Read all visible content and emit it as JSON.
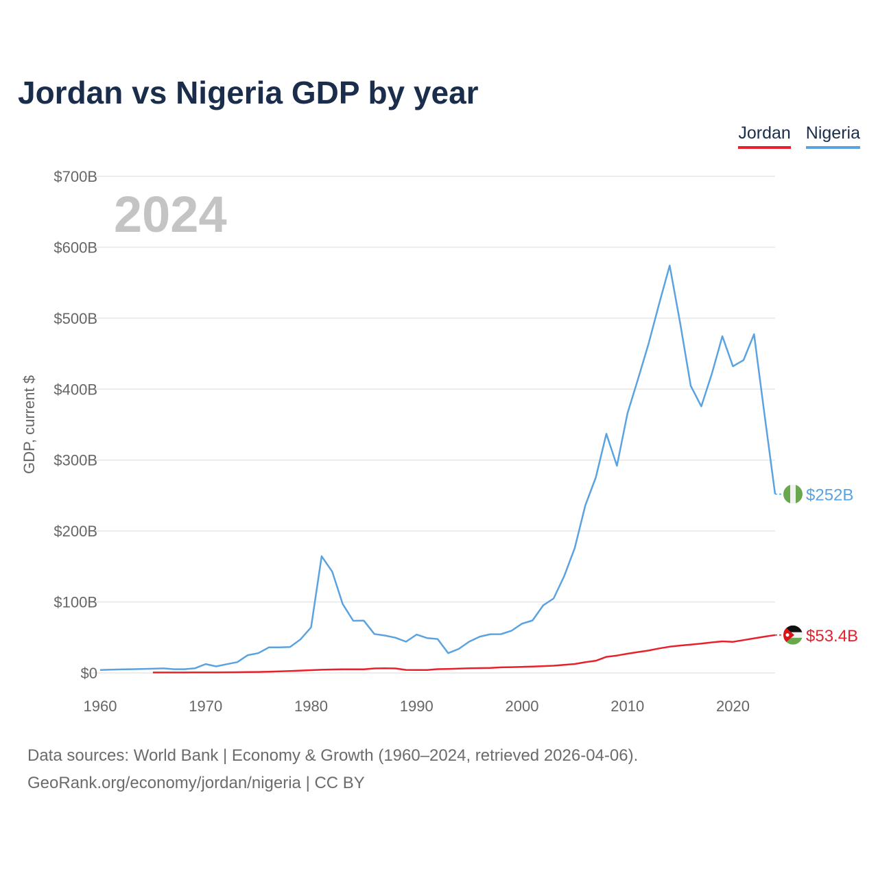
{
  "title": "Jordan vs Nigeria GDP by year",
  "legend": {
    "jordan": "Jordan",
    "nigeria": "Nigeria"
  },
  "footer": {
    "line1": "Data sources: World Bank | Economy & Growth (1960–2024, retrieved 2026-04-06).",
    "line2": "GeoRank.org/economy/jordan/nigeria | CC BY"
  },
  "chart_data": {
    "type": "line",
    "title": "Jordan vs Nigeria GDP by year",
    "xlabel": "",
    "ylabel": "GDP, current $",
    "xlim": [
      1960,
      2024
    ],
    "ylim": [
      0,
      700
    ],
    "y_unit": "billions USD",
    "xticks": [
      1960,
      1970,
      1980,
      1990,
      2000,
      2010,
      2020
    ],
    "yticks": [
      0,
      100,
      200,
      300,
      400,
      500,
      600,
      700
    ],
    "ytick_labels": [
      "$0",
      "$100B",
      "$200B",
      "$300B",
      "$400B",
      "$500B",
      "$600B",
      "$700B"
    ],
    "year_watermark": "2024",
    "grid": true,
    "legend_position": "top-right",
    "series": [
      {
        "name": "Jordan",
        "color": "#e8202a",
        "end_label": "$53.4B",
        "x": [
          1965,
          1966,
          1967,
          1968,
          1969,
          1970,
          1971,
          1972,
          1973,
          1974,
          1975,
          1976,
          1977,
          1978,
          1979,
          1980,
          1981,
          1982,
          1983,
          1984,
          1985,
          1986,
          1987,
          1988,
          1989,
          1990,
          1991,
          1992,
          1993,
          1994,
          1995,
          1996,
          1997,
          1998,
          1999,
          2000,
          2001,
          2002,
          2003,
          2004,
          2005,
          2006,
          2007,
          2008,
          2009,
          2010,
          2011,
          2012,
          2013,
          2014,
          2015,
          2016,
          2017,
          2018,
          2019,
          2020,
          2021,
          2022,
          2023,
          2024
        ],
        "values": [
          0.6,
          0.6,
          0.6,
          0.6,
          0.7,
          0.7,
          0.8,
          0.9,
          1.0,
          1.2,
          1.4,
          1.7,
          2.1,
          2.6,
          3.3,
          3.9,
          4.4,
          4.8,
          5.0,
          5.1,
          5.0,
          6.3,
          6.5,
          6.3,
          4.3,
          4.2,
          4.2,
          5.3,
          5.6,
          6.1,
          6.6,
          6.8,
          7.1,
          7.8,
          8.1,
          8.5,
          8.9,
          9.6,
          10.2,
          11.4,
          12.6,
          15.1,
          17.1,
          22.6,
          24.5,
          27.1,
          29.4,
          31.5,
          34.5,
          36.9,
          38.6,
          39.9,
          41.4,
          43.0,
          44.5,
          43.8,
          46.2,
          48.7,
          51.1,
          53.4
        ]
      },
      {
        "name": "Nigeria",
        "color": "#5aa3e0",
        "end_label": "$252B",
        "x": [
          1960,
          1961,
          1962,
          1963,
          1964,
          1965,
          1966,
          1967,
          1968,
          1969,
          1970,
          1971,
          1972,
          1973,
          1974,
          1975,
          1976,
          1977,
          1978,
          1979,
          1980,
          1981,
          1982,
          1983,
          1984,
          1985,
          1986,
          1987,
          1988,
          1989,
          1990,
          1991,
          1992,
          1993,
          1994,
          1995,
          1996,
          1997,
          1998,
          1999,
          2000,
          2001,
          2002,
          2003,
          2004,
          2005,
          2006,
          2007,
          2008,
          2009,
          2010,
          2011,
          2012,
          2013,
          2014,
          2015,
          2016,
          2017,
          2018,
          2019,
          2020,
          2021,
          2022,
          2023,
          2024
        ],
        "values": [
          4.2,
          4.5,
          4.9,
          5.2,
          5.5,
          5.9,
          6.4,
          5.2,
          5.2,
          6.6,
          12.5,
          9.2,
          12.3,
          15.2,
          25.0,
          27.8,
          36.0,
          36.0,
          36.5,
          47.3,
          64.2,
          164.5,
          142.8,
          97.1,
          73.5,
          73.7,
          54.8,
          52.7,
          49.6,
          44.0,
          54.0,
          49.1,
          47.8,
          27.8,
          33.8,
          44.1,
          51.1,
          54.5,
          54.6,
          59.4,
          69.4,
          74.0,
          95.1,
          104.9,
          136.4,
          176.1,
          236.1,
          275.6,
          337.0,
          291.9,
          366.0,
          414.0,
          463.9,
          520.1,
          574.2,
          493.0,
          404.6,
          375.7,
          421.7,
          474.5,
          432.2,
          440.8,
          477.4,
          363.8,
          252.0
        ]
      }
    ]
  }
}
